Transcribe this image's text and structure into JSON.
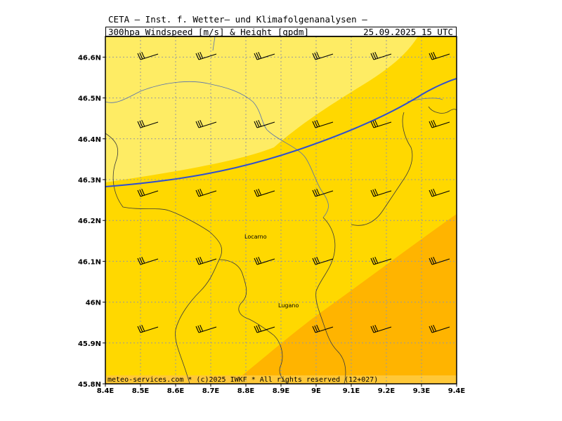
{
  "header": {
    "line1": "CETA — Inst. f. Wetter— und Klimafolgenanalysen —",
    "line2_left": "300hpa_Windspeed_[m/s]_&_Height_[gpdm]",
    "line2_right": "25.09.2025 15 UTC"
  },
  "footer": "meteo-services.com * (c)2025 IWKF * All rights reserved (12+027)",
  "colors": {
    "light_yellow": "#FEEC64",
    "yellow": "#FFD800",
    "orange": "#FFB400",
    "contour": "#3050D0",
    "border": "#5570B0",
    "grid": "#9A9A9A"
  },
  "cities": [
    {
      "name": "Locarno",
      "lon": 8.8,
      "lat": 46.17
    },
    {
      "name": "Lugano",
      "lon": 8.95,
      "lat": 46.0
    }
  ],
  "chart_data": {
    "type": "map",
    "x_ticks": [
      "8.4E",
      "8.5E",
      "8.6E",
      "8.7E",
      "8.8E",
      "8.9E",
      "9E",
      "9.1E",
      "9.2E",
      "9.3E",
      "9.4E"
    ],
    "y_ticks": [
      "45.8N",
      "45.9N",
      "46N",
      "46.1N",
      "46.2N",
      "46.3N",
      "46.4N",
      "46.5N",
      "46.6N"
    ],
    "xlim": [
      8.4,
      9.4
    ],
    "ylim": [
      45.8,
      46.65
    ],
    "grid": true
  }
}
